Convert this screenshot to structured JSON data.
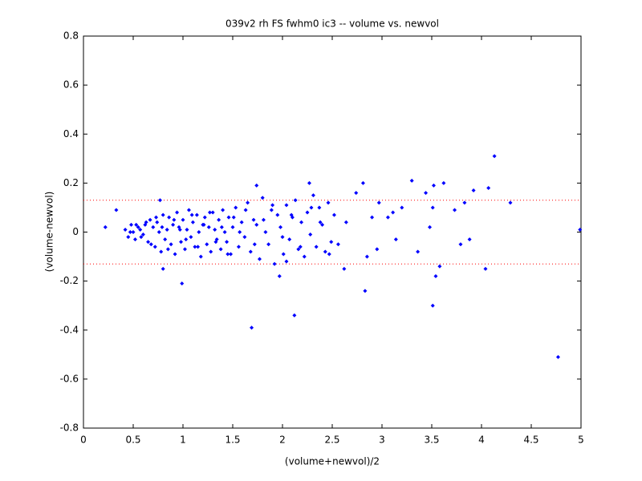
{
  "chart_data": {
    "type": "scatter",
    "title": "039v2 rh FS fwhm0 ic3 -- volume vs. newvol",
    "x_label": "(volume+newvol)/2",
    "y_label": "(volume-newvol)",
    "color": "#0000ff",
    "hlines": [
      0.13,
      -0.13
    ],
    "hline_color": "#ff0000",
    "xlim": [
      0,
      5
    ],
    "ylim": [
      -0.8,
      0.8
    ],
    "xticks": [
      0,
      0.5,
      1,
      1.5,
      2,
      2.5,
      3,
      3.5,
      4,
      4.5,
      5
    ],
    "yticks": [
      -0.8,
      -0.6,
      -0.4,
      -0.2,
      0,
      0.2,
      0.4,
      0.6,
      0.8
    ],
    "x": [
      0.22,
      0.33,
      0.99,
      1.69,
      2.12,
      1.97,
      2.83,
      3.51,
      4.77,
      4.13,
      4.07,
      4.29,
      4.04,
      3.58,
      3.54,
      3.52,
      3.62,
      3.44,
      3.3,
      3.92,
      4.99,
      2.27,
      2.81,
      2.62,
      1.74,
      0.77,
      0.8,
      2.04,
      3.36,
      3.51,
      3.73,
      3.79,
      3.83,
      3.88,
      3.06,
      3.2,
      2.95,
      3.14,
      3.48,
      3.11,
      2.9,
      2.85,
      2.97,
      2.74,
      2.64,
      2.56,
      0.42,
      0.45,
      0.48,
      0.5,
      0.52,
      0.55,
      0.57,
      0.6,
      0.62,
      0.65,
      0.67,
      0.7,
      0.72,
      0.74,
      0.76,
      0.78,
      0.8,
      0.82,
      0.84,
      0.86,
      0.88,
      0.9,
      0.92,
      0.94,
      0.96,
      0.98,
      1.0,
      1.02,
      1.04,
      1.06,
      1.08,
      1.1,
      1.12,
      1.14,
      1.16,
      1.18,
      1.2,
      1.22,
      1.24,
      1.26,
      1.28,
      1.3,
      1.32,
      1.34,
      1.36,
      1.38,
      1.4,
      1.42,
      1.44,
      1.46,
      1.48,
      1.5,
      1.53,
      1.56,
      1.59,
      1.62,
      1.65,
      1.68,
      1.71,
      1.74,
      1.77,
      1.8,
      1.83,
      1.86,
      1.89,
      1.92,
      1.95,
      1.98,
      2.01,
      2.04,
      2.07,
      2.1,
      2.13,
      2.16,
      2.19,
      2.22,
      2.25,
      2.28,
      2.31,
      2.34,
      2.37,
      2.4,
      2.43,
      2.46,
      2.49,
      2.52,
      0.47,
      0.53,
      0.58,
      0.63,
      0.68,
      0.73,
      0.79,
      0.85,
      0.91,
      0.97,
      1.03,
      1.09,
      1.15,
      1.21,
      1.27,
      1.33,
      1.39,
      1.45,
      1.51,
      1.57,
      1.63,
      1.72,
      1.81,
      1.9,
      2.0,
      2.09,
      2.18,
      2.29,
      2.38,
      2.47
    ],
    "values": [
      0.02,
      0.09,
      -0.21,
      -0.39,
      -0.34,
      -0.18,
      -0.24,
      -0.3,
      -0.51,
      0.31,
      0.18,
      0.12,
      -0.15,
      -0.14,
      -0.18,
      0.19,
      0.2,
      0.16,
      0.21,
      0.17,
      0.01,
      0.2,
      0.2,
      -0.15,
      0.19,
      0.13,
      -0.15,
      -0.12,
      -0.08,
      0.1,
      0.09,
      -0.05,
      0.12,
      -0.03,
      0.06,
      0.1,
      -0.07,
      -0.03,
      0.02,
      0.08,
      0.06,
      -0.1,
      0.12,
      0.16,
      0.04,
      -0.05,
      0.01,
      -0.02,
      0.03,
      0.0,
      -0.03,
      0.02,
      0.01,
      -0.01,
      0.03,
      -0.04,
      0.05,
      0.02,
      -0.06,
      0.04,
      0.0,
      -0.08,
      0.07,
      -0.03,
      0.01,
      0.06,
      -0.05,
      0.03,
      -0.09,
      0.08,
      0.02,
      -0.04,
      0.05,
      -0.07,
      0.01,
      0.09,
      -0.02,
      0.04,
      -0.06,
      0.07,
      0.0,
      -0.1,
      0.03,
      0.06,
      -0.05,
      0.02,
      -0.08,
      0.08,
      0.01,
      -0.03,
      0.05,
      -0.07,
      0.09,
      0.0,
      -0.04,
      0.06,
      -0.09,
      0.02,
      0.1,
      -0.06,
      0.04,
      -0.02,
      0.12,
      -0.08,
      0.05,
      0.03,
      -0.11,
      0.14,
      0.0,
      -0.05,
      0.09,
      -0.13,
      0.07,
      0.02,
      -0.09,
      0.11,
      -0.03,
      0.06,
      0.13,
      -0.07,
      0.04,
      -0.1,
      0.08,
      -0.01,
      0.15,
      -0.06,
      0.1,
      0.03,
      -0.08,
      0.12,
      -0.04,
      0.07,
      0.0,
      0.03,
      -0.02,
      0.04,
      -0.05,
      0.06,
      0.02,
      -0.07,
      0.05,
      0.01,
      -0.03,
      0.07,
      -0.06,
      0.03,
      0.08,
      -0.04,
      0.02,
      -0.09,
      0.06,
      0.0,
      0.09,
      -0.05,
      0.05,
      0.11,
      -0.02,
      0.07,
      -0.06,
      0.1,
      0.04,
      -0.09
    ]
  }
}
